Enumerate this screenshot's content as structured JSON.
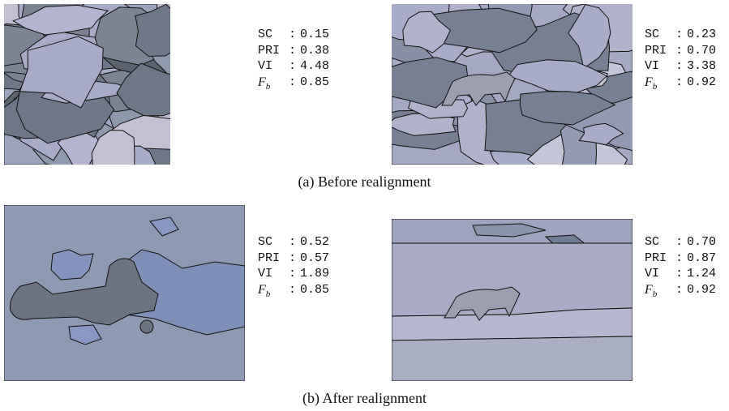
{
  "separator": ":",
  "panels": [
    {
      "metrics": [
        {
          "name": "SC",
          "value": "0.15"
        },
        {
          "name": "PRI",
          "value": "0.38"
        },
        {
          "name": "VI",
          "value": "4.48"
        },
        {
          "name": {
            "symbol": "F",
            "subscript": "b"
          },
          "value": "0.85"
        }
      ]
    },
    {
      "metrics": [
        {
          "name": "SC",
          "value": "0.23"
        },
        {
          "name": "PRI",
          "value": "0.70"
        },
        {
          "name": "VI",
          "value": "3.38"
        },
        {
          "name": {
            "symbol": "F",
            "subscript": "b"
          },
          "value": "0.92"
        }
      ]
    },
    {
      "metrics": [
        {
          "name": "SC",
          "value": "0.52"
        },
        {
          "name": "PRI",
          "value": "0.57"
        },
        {
          "name": "VI",
          "value": "1.89"
        },
        {
          "name": {
            "symbol": "F",
            "subscript": "b"
          },
          "value": "0.85"
        }
      ]
    },
    {
      "metrics": [
        {
          "name": "SC",
          "value": "0.70"
        },
        {
          "name": "PRI",
          "value": "0.87"
        },
        {
          "name": "VI",
          "value": "1.24"
        },
        {
          "name": {
            "symbol": "F",
            "subscript": "b"
          },
          "value": "0.92"
        }
      ]
    }
  ],
  "captions": [
    "(a) Before realignment",
    "(b) After realignment"
  ]
}
